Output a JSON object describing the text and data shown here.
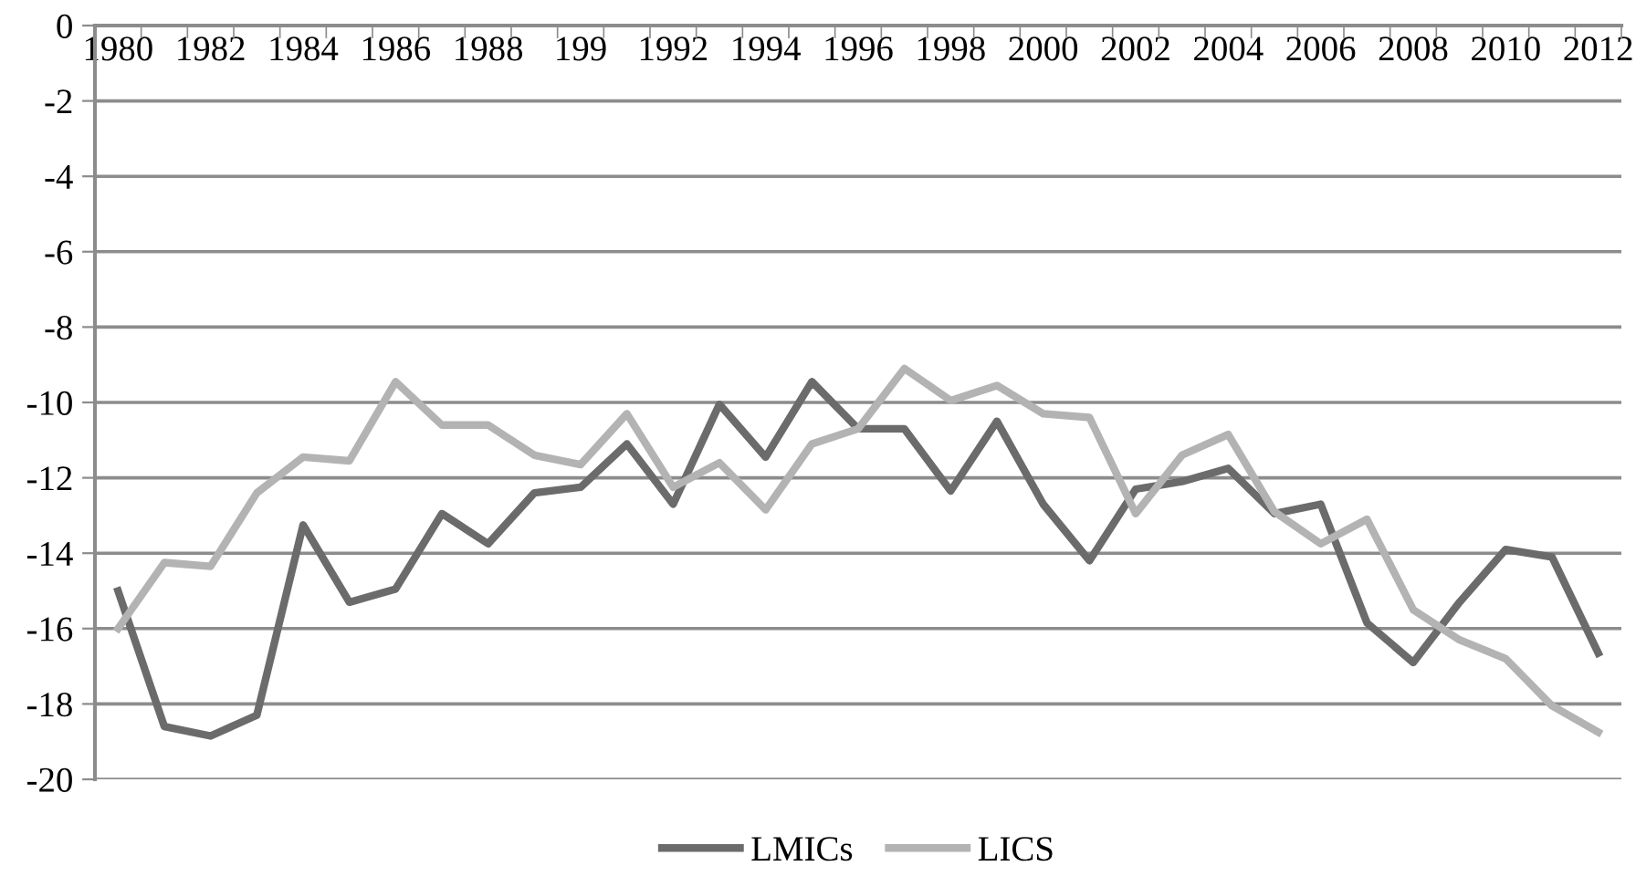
{
  "chart_data": {
    "type": "line",
    "categories": [
      "1980",
      null,
      "1982",
      null,
      "1984",
      null,
      "1986",
      null,
      "1988",
      null,
      "199",
      null,
      "1992",
      null,
      "1994",
      null,
      "1996",
      null,
      "1998",
      null,
      "2000",
      null,
      "2002",
      null,
      "2004",
      null,
      "2006",
      null,
      "2008",
      null,
      "2010",
      null,
      "2012"
    ],
    "series": [
      {
        "name": "LMICs",
        "color": "#6b6b6b",
        "values": [
          -15.0,
          -18.6,
          -18.85,
          -18.3,
          -13.25,
          -15.3,
          -14.95,
          -12.95,
          -13.75,
          -12.4,
          -12.25,
          -11.1,
          -12.7,
          -10.05,
          -11.45,
          -9.45,
          -10.7,
          -10.7,
          -12.35,
          -10.5,
          -12.7,
          -14.2,
          -12.3,
          -12.1,
          -11.75,
          -12.95,
          -12.7,
          -15.85,
          -16.9,
          -15.3,
          -13.9,
          -14.1,
          -16.65
        ]
      },
      {
        "name": "LICS",
        "color": "#b3b3b3",
        "values": [
          -16.0,
          -14.25,
          -14.35,
          -12.4,
          -11.45,
          -11.55,
          -9.45,
          -10.6,
          -10.6,
          -11.4,
          -11.65,
          -10.3,
          -12.25,
          -11.6,
          -12.85,
          -11.1,
          -10.7,
          -9.1,
          -9.95,
          -9.55,
          -10.3,
          -10.4,
          -12.95,
          -11.4,
          -10.85,
          -12.9,
          -13.75,
          -13.1,
          -15.5,
          -16.3,
          -16.8,
          -18.05,
          -18.75
        ]
      }
    ],
    "ylim": [
      -20,
      0
    ],
    "yticks": [
      -20,
      -18,
      -16,
      -14,
      -12,
      -10,
      -8,
      -6,
      -4,
      -2,
      0
    ],
    "grid": "y",
    "legend": "bottom",
    "marker": "none",
    "line_style": "solid"
  }
}
